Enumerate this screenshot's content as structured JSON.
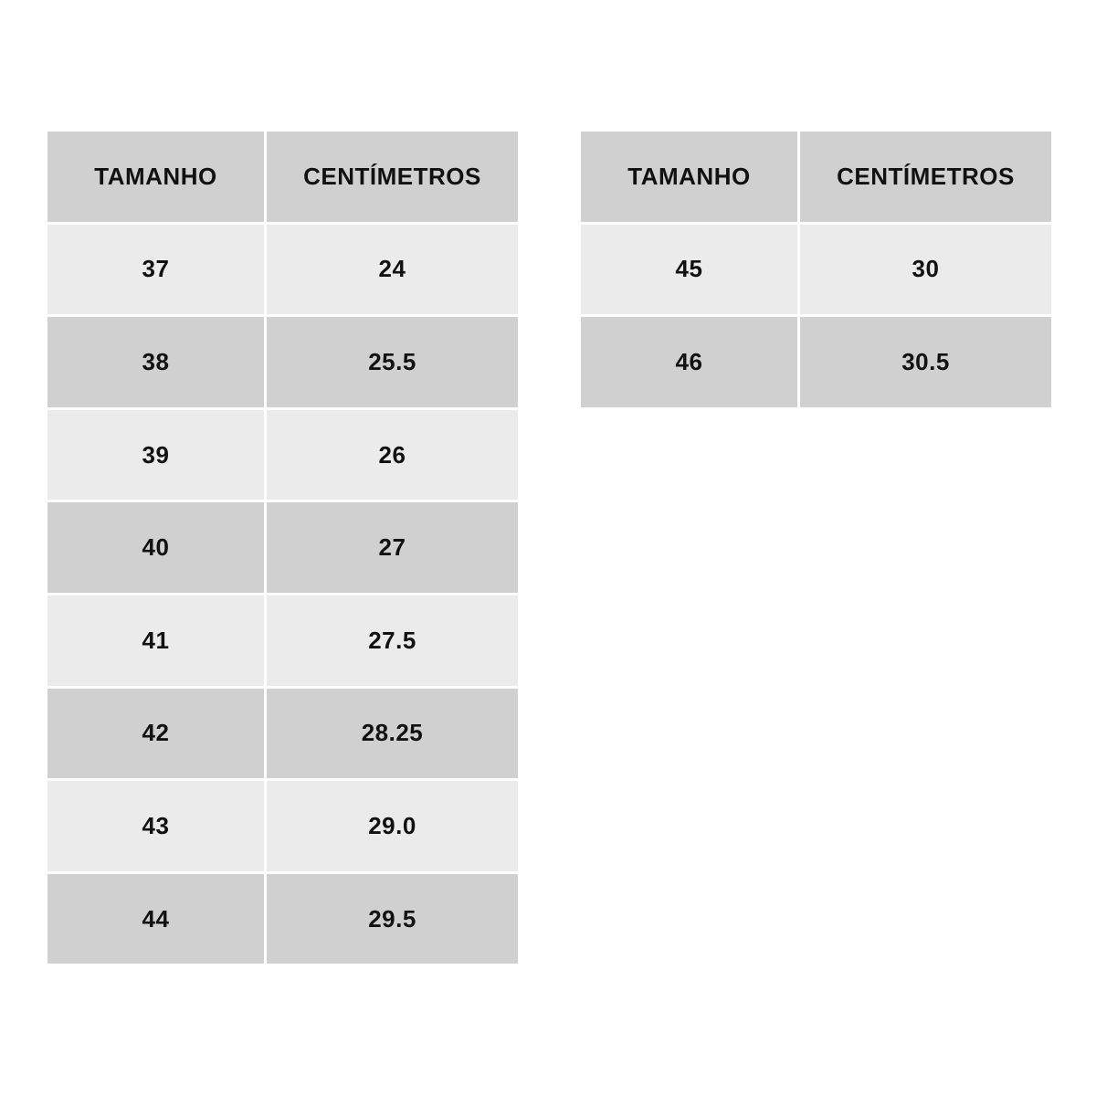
{
  "colors": {
    "header_bg": "#d0d0d0",
    "row_light": "#ebebeb",
    "row_dark": "#d0d0d0",
    "text": "#111111"
  },
  "tables": [
    {
      "headers": [
        "TAMANHO",
        "CENTÍMETROS"
      ],
      "rows": [
        [
          "37",
          "24"
        ],
        [
          "38",
          "25.5"
        ],
        [
          "39",
          "26"
        ],
        [
          "40",
          "27"
        ],
        [
          "41",
          "27.5"
        ],
        [
          "42",
          "28.25"
        ],
        [
          "43",
          "29.0"
        ],
        [
          "44",
          "29.5"
        ]
      ]
    },
    {
      "headers": [
        "TAMANHO",
        "CENTÍMETROS"
      ],
      "rows": [
        [
          "45",
          "30"
        ],
        [
          "46",
          "30.5"
        ]
      ]
    }
  ]
}
